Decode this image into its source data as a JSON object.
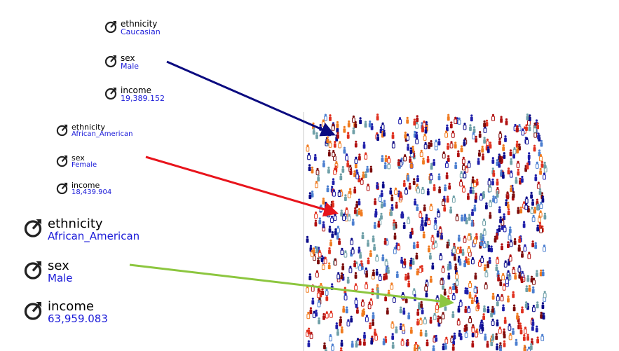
{
  "agents": [
    {
      "id": "agent-1",
      "ethnicity": {
        "label": "ethnicity",
        "value": "Caucasian"
      },
      "sex": {
        "label": "sex",
        "value": "Male"
      },
      "income": {
        "label": "income",
        "value": "19,389.152"
      },
      "arrow_color": "#0b0b80"
    },
    {
      "id": "agent-2",
      "ethnicity": {
        "label": "ethnicity",
        "value": "African_American"
      },
      "sex": {
        "label": "sex",
        "value": "Female"
      },
      "income": {
        "label": "income",
        "value": "18,439.904"
      },
      "arrow_color": "#e8141c"
    },
    {
      "id": "agent-3",
      "ethnicity": {
        "label": "ethnicity",
        "value": "African_American"
      },
      "sex": {
        "label": "sex",
        "value": "Male"
      },
      "income": {
        "label": "income",
        "value": "63,959.083"
      },
      "arrow_color": "#8cc63f"
    }
  ],
  "icons": {
    "attribute": "attribute-knob-icon",
    "person": "person-figure-icon"
  },
  "crowd_colors": [
    "#0a0a8a",
    "#7a0a0a",
    "#e0301e",
    "#f07a1e",
    "#4c7fd0",
    "#6fa0a8",
    "#1f1faa",
    "#b01010"
  ]
}
